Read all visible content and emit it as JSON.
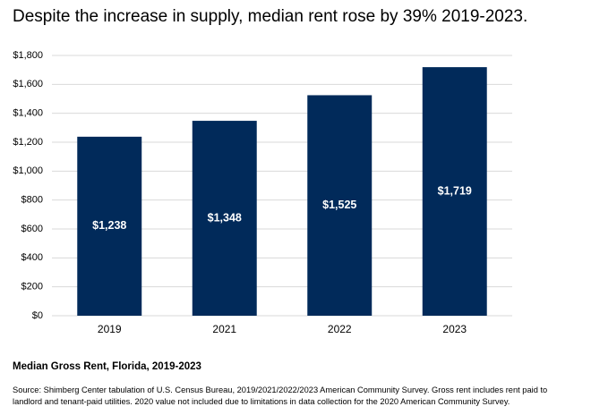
{
  "chart_data": {
    "type": "bar",
    "title": "Despite the increase in supply, median rent rose by 39% 2019-2023.",
    "subtitle": "Median Gross Rent, Florida, 2019-2023",
    "source": "Source: Shimberg Center tabulation of U.S. Census Bureau, 2019/2021/2022/2023 American Community Survey. Gross rent includes rent paid to landlord and tenant-paid utilities. 2020 value not included due to limitations in data collection for the 2020 American Community Survey.",
    "categories": [
      "2019",
      "2021",
      "2022",
      "2023"
    ],
    "values": [
      1238,
      1348,
      1525,
      1719
    ],
    "value_labels": [
      "$1,238",
      "$1,348",
      "$1,525",
      "$1,719"
    ],
    "color": "#012a5a",
    "ylim": [
      0,
      1800
    ],
    "yticks": [
      {
        "value": 0,
        "label": "$0"
      },
      {
        "value": 200,
        "label": "$200"
      },
      {
        "value": 400,
        "label": "$400"
      },
      {
        "value": 600,
        "label": "$600"
      },
      {
        "value": 800,
        "label": "$800"
      },
      {
        "value": 1000,
        "label": "$1,000"
      },
      {
        "value": 1200,
        "label": "$1,200"
      },
      {
        "value": 1400,
        "label": "$1,400"
      },
      {
        "value": 1600,
        "label": "$1,600"
      },
      {
        "value": 1800,
        "label": "$1,800"
      }
    ],
    "grid": true
  }
}
